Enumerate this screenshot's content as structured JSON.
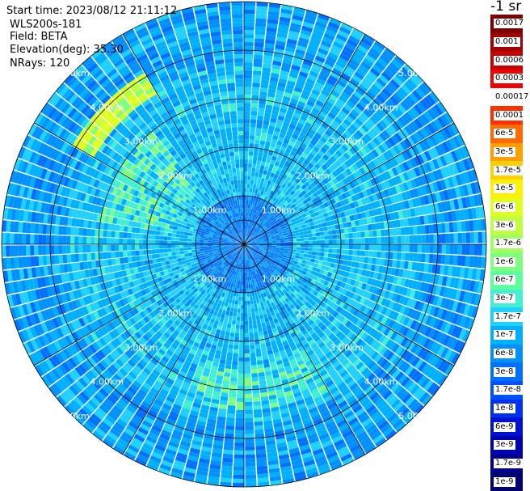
{
  "header": {
    "start_time": "Start time: 2023/08/12 21:11:12",
    "instrument": "WLS200s-181",
    "field": "Field: BETA",
    "elevation": "Elevation(deg): 35.30",
    "nrays": "NRays: 120"
  },
  "colorbar": {
    "title": "-1 sr",
    "labels": [
      "0.0017",
      "0.001",
      "0.0006",
      "0.0003",
      "0.00017",
      "0.0001",
      "6e-5",
      "3e-5",
      "1.7e-5",
      "1e-5",
      "6e-6",
      "3e-6",
      "1.7e-6",
      "1e-6",
      "6e-7",
      "3e-7",
      "1.7e-7",
      "1e-7",
      "6e-8",
      "3e-8",
      "1.7e-8",
      "1e-8",
      "6e-9",
      "3e-9",
      "1.7e-9",
      "1e-9"
    ],
    "colors": [
      "#7a0000",
      "#a00000",
      "#c80000",
      "#f00000",
      "#ffffff",
      "#ff3000",
      "#ff6a00",
      "#ffa000",
      "#ffd000",
      "#fff000",
      "#e0ff20",
      "#c0ff40",
      "#9fff60",
      "#7fff80",
      "#5fffa0",
      "#40f0d0",
      "#20d0ff",
      "#00b0ff",
      "#0090ff",
      "#0070ff",
      "#0050ff",
      "#0030f0",
      "#0010d0",
      "#0000b0",
      "#000090",
      "#000070"
    ]
  },
  "chart_data": {
    "type": "heatmap",
    "projection": "polar (PPI scan)",
    "rays": 120,
    "field": "BETA",
    "units": "-1 sr",
    "range_ring_labels": [
      "1.00km",
      "2.00km",
      "3.00km",
      "4.00km",
      "5.00km"
    ],
    "range_rings_km": [
      1,
      2,
      3,
      4,
      5
    ],
    "max_range_km": 5.0,
    "spoke_angles_deg": [
      0,
      30,
      60,
      90,
      120,
      150,
      180,
      210,
      240,
      270,
      300,
      330
    ],
    "dominant_value": "1e-7 to 6e-7",
    "features": [
      {
        "value": "1e-6 to 1.7e-6",
        "azimuth_deg": [
          280,
          320
        ],
        "range_km": [
          1.5,
          3.0
        ]
      },
      {
        "value": "3e-6 to 6e-6",
        "azimuth_deg": [
          300,
          330
        ],
        "range_km": [
          3.6,
          4.1
        ]
      },
      {
        "value": "1e-6 to 1.7e-6",
        "azimuth_deg": [
          150,
          200
        ],
        "range_km": [
          2.6,
          3.4
        ]
      },
      {
        "value": "1e-8 to 3e-8",
        "azimuth_deg": [
          0,
          360
        ],
        "range_km": [
          0,
          1.0
        ]
      }
    ]
  }
}
